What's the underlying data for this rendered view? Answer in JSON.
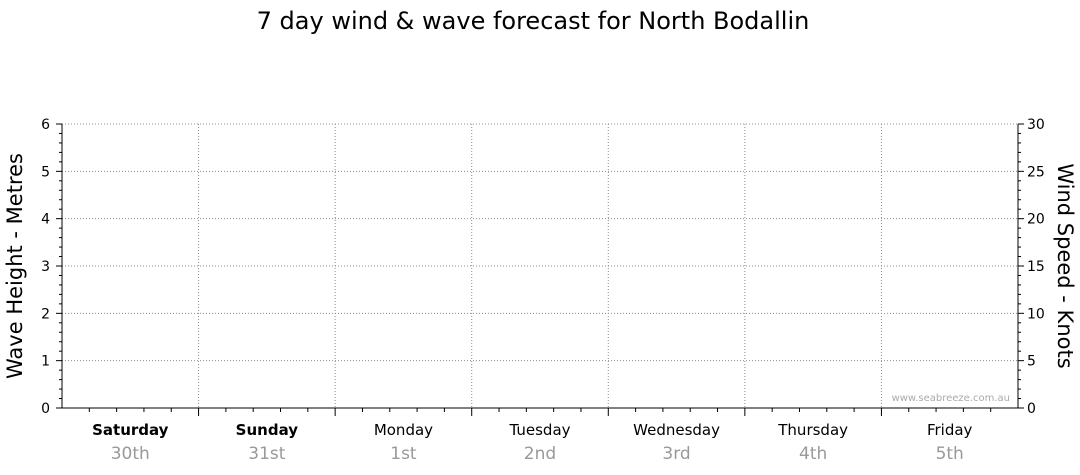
{
  "chart_data": {
    "type": "line",
    "title": "7 day wind & wave forecast for North Bodallin",
    "ylabel_left": "Wave Height - Metres",
    "ylabel_right": "Wind Speed - Knots",
    "ylim_left": [
      0,
      6
    ],
    "ylim_right": [
      0,
      30
    ],
    "yticks_left": [
      "0",
      "1",
      "2",
      "3",
      "4",
      "5",
      "6"
    ],
    "yticks_right": [
      "0",
      "5",
      "10",
      "15",
      "20",
      "25",
      "30"
    ],
    "days": [
      {
        "name": "Saturday",
        "date": "30th",
        "bold": true
      },
      {
        "name": "Sunday",
        "date": "31st",
        "bold": true
      },
      {
        "name": "Monday",
        "date": "1st",
        "bold": false
      },
      {
        "name": "Tuesday",
        "date": "2nd",
        "bold": false
      },
      {
        "name": "Wednesday",
        "date": "3rd",
        "bold": false
      },
      {
        "name": "Thursday",
        "date": "4th",
        "bold": false
      },
      {
        "name": "Friday",
        "date": "5th",
        "bold": false
      }
    ],
    "series": [],
    "grid": true,
    "watermark": "www.seabreeze.com.au"
  }
}
